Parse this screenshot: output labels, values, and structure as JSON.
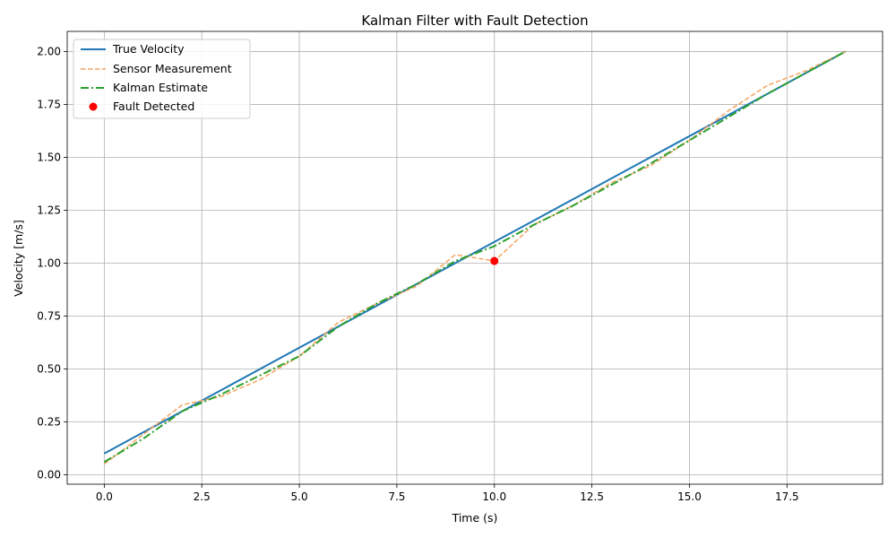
{
  "chart_data": {
    "type": "line",
    "title": "Kalman Filter with Fault Detection",
    "xlabel": "Time (s)",
    "ylabel": "Velocity [m/s]",
    "xlim": [
      -0.95,
      19.95
    ],
    "ylim": [
      -0.045,
      2.095
    ],
    "xticks": [
      0.0,
      2.5,
      5.0,
      7.5,
      10.0,
      12.5,
      15.0,
      17.5
    ],
    "xtick_labels": [
      "0.0",
      "2.5",
      "5.0",
      "7.5",
      "10.0",
      "12.5",
      "15.0",
      "17.5"
    ],
    "yticks": [
      0.0,
      0.25,
      0.5,
      0.75,
      1.0,
      1.25,
      1.5,
      1.75,
      2.0
    ],
    "ytick_labels": [
      "0.00",
      "0.25",
      "0.50",
      "0.75",
      "1.00",
      "1.25",
      "1.50",
      "1.75",
      "2.00"
    ],
    "grid": true,
    "legend_position": "top-left",
    "x": [
      0,
      1,
      2,
      3,
      4,
      5,
      6,
      7,
      8,
      9,
      10,
      11,
      12,
      13,
      14,
      15,
      16,
      17,
      18,
      19
    ],
    "series": [
      {
        "name": "True Velocity",
        "style": "solid",
        "color": "#1f77b4",
        "values": [
          0.1,
          0.2,
          0.3,
          0.4,
          0.5,
          0.6,
          0.7,
          0.8,
          0.9,
          1.0,
          1.1,
          1.2,
          1.3,
          1.4,
          1.5,
          1.6,
          1.7,
          1.8,
          1.9,
          2.0
        ]
      },
      {
        "name": "Sensor Measurement",
        "style": "dashed",
        "color": "#f4a460",
        "values": [
          0.05,
          0.19,
          0.33,
          0.37,
          0.45,
          0.56,
          0.72,
          0.81,
          0.89,
          1.04,
          1.01,
          1.18,
          1.27,
          1.38,
          1.46,
          1.58,
          1.72,
          1.84,
          1.91,
          2.0
        ]
      },
      {
        "name": "Kalman Estimate",
        "style": "dashdot",
        "color": "#2ca02c",
        "values": [
          0.06,
          0.17,
          0.3,
          0.38,
          0.47,
          0.56,
          0.7,
          0.81,
          0.9,
          1.01,
          1.08,
          1.18,
          1.27,
          1.37,
          1.47,
          1.58,
          1.69,
          1.8,
          1.9,
          2.0
        ]
      }
    ],
    "faults": {
      "name": "Fault Detected",
      "color": "#ff0000",
      "points": [
        {
          "x": 10,
          "y": 1.01
        }
      ]
    }
  }
}
